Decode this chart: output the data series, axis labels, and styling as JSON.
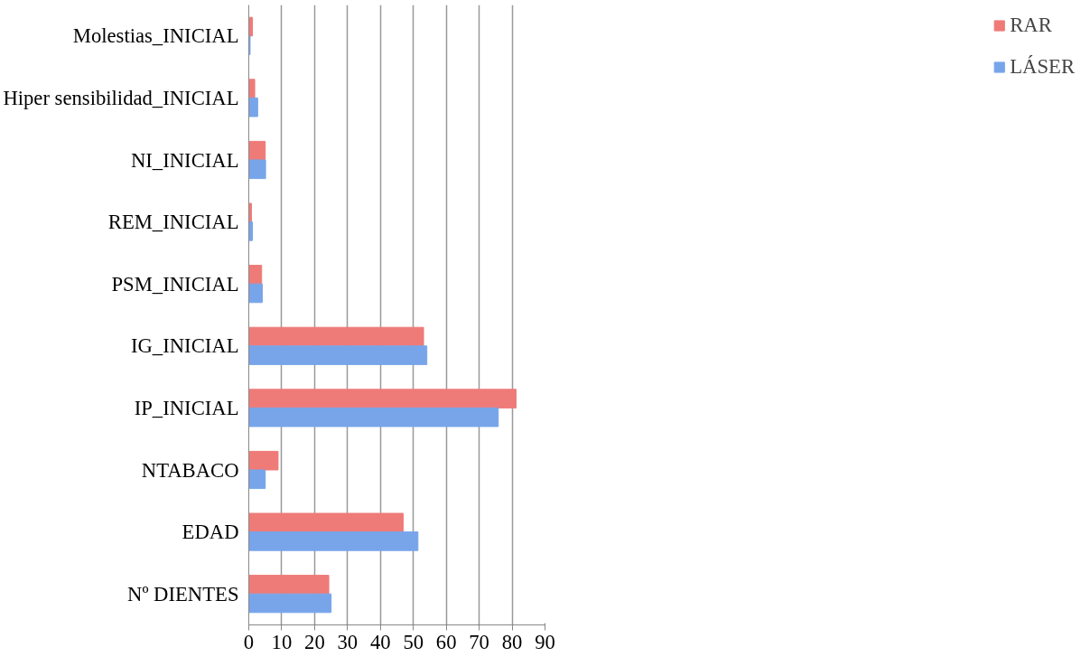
{
  "chart_data": {
    "type": "bar",
    "orientation": "horizontal",
    "categories": [
      "Molestias_INICIAL",
      "Hiper sensibilidad_INICIAL",
      "NI_INICIAL",
      "REM_INICIAL",
      "PSM_INICIAL",
      "IG_INICIAL",
      "IP_INICIAL",
      "NTABACO",
      "EDAD",
      "Nº DIENTES"
    ],
    "series": [
      {
        "name": "RAR",
        "color": "#ee7b78",
        "values": [
          1.1,
          1.8,
          5.0,
          0.8,
          3.9,
          53.1,
          81.2,
          8.9,
          46.9,
          24.3
        ]
      },
      {
        "name": "LÁSER",
        "color": "#78a5ea",
        "values": [
          0.4,
          2.7,
          5.1,
          1.1,
          4.1,
          54.1,
          75.8,
          5.0,
          51.4,
          25.0
        ]
      }
    ],
    "xlim": [
      0,
      90
    ],
    "xticks": [
      0,
      10,
      20,
      30,
      40,
      50,
      60,
      70,
      80,
      90
    ],
    "grid": "x",
    "legend": "right"
  }
}
